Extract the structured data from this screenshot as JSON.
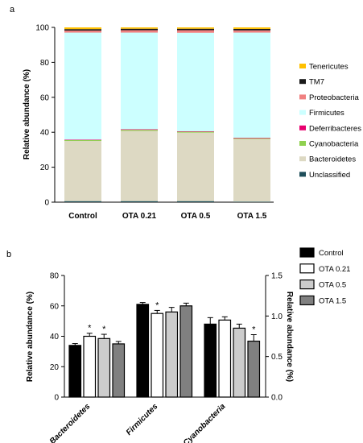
{
  "panels": {
    "a": "a",
    "b": "b"
  },
  "chart_data": [
    {
      "type": "bar",
      "stacked": true,
      "panel": "a",
      "categories": [
        "Control",
        "OTA 0.21",
        "OTA 0.5",
        "OTA 1.5"
      ],
      "ylabel": "Relative abundance (%)",
      "ylim": [
        0,
        100
      ],
      "yticks": [
        0,
        20,
        40,
        60,
        80,
        100
      ],
      "legend_position": "right",
      "series": [
        {
          "name": "Unclassified",
          "color": "#1f4e5a",
          "values": [
            0.6,
            0.6,
            0.6,
            0.3
          ]
        },
        {
          "name": "Bacteroidetes",
          "color": "#ddd9c3",
          "values": [
            34.4,
            40.2,
            39.2,
            35.9
          ]
        },
        {
          "name": "Cyanobacteria",
          "color": "#8fd14f",
          "values": [
            0.5,
            0.6,
            0.5,
            0.4
          ]
        },
        {
          "name": "Deferribacteres",
          "color": "#e8006e",
          "values": [
            0.3,
            0.3,
            0.3,
            0.3
          ]
        },
        {
          "name": "Firmicutes",
          "color": "#ccffff",
          "values": [
            61.2,
            55.3,
            56.3,
            60.1
          ]
        },
        {
          "name": "Proteobacteria",
          "color": "#f08080",
          "values": [
            1.2,
            1.4,
            1.5,
            1.3
          ]
        },
        {
          "name": "TM7",
          "color": "#1a1a1a",
          "values": [
            0.8,
            0.8,
            0.8,
            0.8
          ]
        },
        {
          "name": "Tenericutes",
          "color": "#ffc000",
          "values": [
            1.0,
            0.8,
            0.8,
            0.9
          ]
        }
      ]
    },
    {
      "type": "bar",
      "panel": "b",
      "categories": [
        "Bacteroidetes",
        "Firmicutes",
        "Cyanobacteria"
      ],
      "ylabel": "Relative abundance (%)",
      "ylim": [
        0,
        80
      ],
      "yticks": [
        0,
        20,
        40,
        60,
        80
      ],
      "y2label": "Relative abundance (%)",
      "y2lim": [
        0,
        1.5
      ],
      "y2ticks": [
        "0.0",
        "0.5",
        "1.0",
        "1.5"
      ],
      "note": "Cyanobacteria values on right axis",
      "legend_position": "top-right",
      "series": [
        {
          "name": "Control",
          "color": "#000000",
          "values": [
            34,
            61,
            0.9
          ],
          "errors": [
            1.2,
            1.2,
            0.08
          ]
        },
        {
          "name": "OTA 0.21",
          "color": "#ffffff",
          "values": [
            40,
            55,
            0.95
          ],
          "errors": [
            2.0,
            2.0,
            0.04
          ],
          "significant": [
            true,
            true,
            false
          ]
        },
        {
          "name": "OTA 0.5",
          "color": "#cccccc",
          "values": [
            38.5,
            56,
            0.85
          ],
          "errors": [
            2.8,
            3.0,
            0.05
          ],
          "significant": [
            true,
            false,
            false
          ]
        },
        {
          "name": "OTA 1.5",
          "color": "#808080",
          "values": [
            35,
            60,
            0.69
          ],
          "errors": [
            1.6,
            1.8,
            0.08
          ],
          "significant": [
            false,
            false,
            true
          ]
        }
      ],
      "significance_marker": "*"
    }
  ]
}
